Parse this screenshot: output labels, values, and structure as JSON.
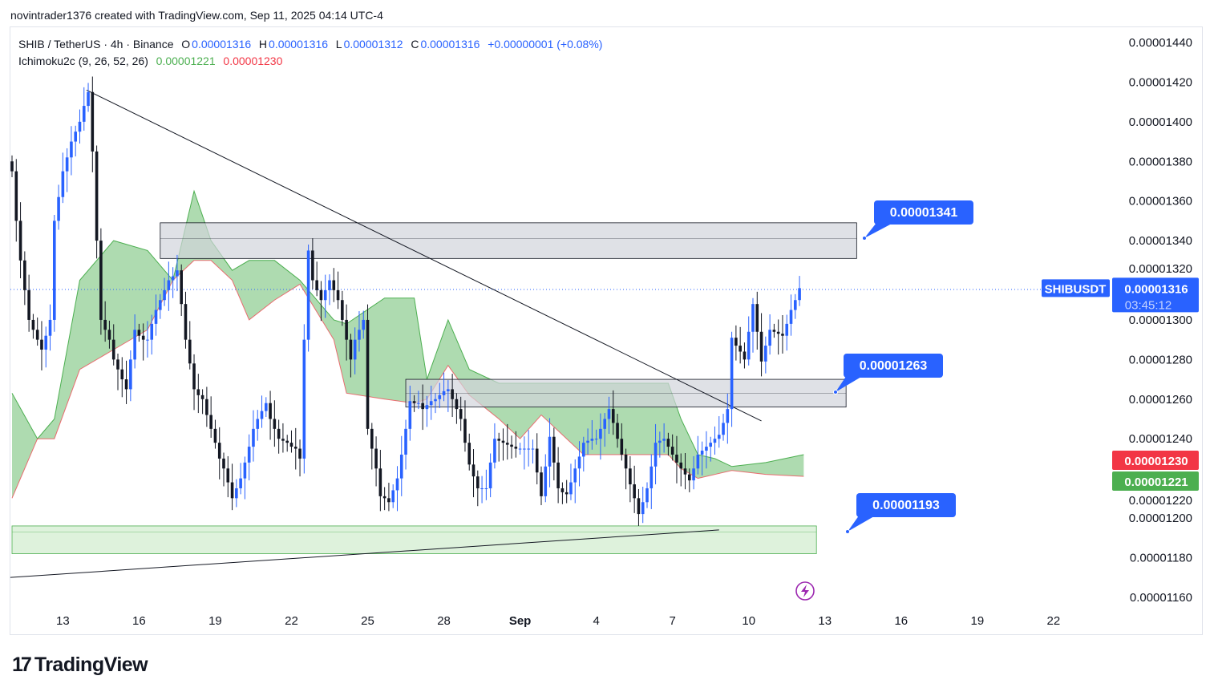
{
  "credit": "novintrader1376 created with TradingView.com, Sep 11, 2025 04:14 UTC-4",
  "legend": {
    "symbol": "SHIB / TetherUS · 4h · Binance",
    "o_label": "O",
    "o": "0.00001316",
    "h_label": "H",
    "h": "0.00001316",
    "l_label": "L",
    "l": "0.00001312",
    "c_label": "C",
    "c": "0.00001316",
    "change": "+0.00000001 (+0.08%)",
    "indicator": "Ichimoku2c (9, 26, 52, 26)",
    "ind_val1": "0.00001221",
    "ind_val2": "0.00001230"
  },
  "price_tag": {
    "symbol": "SHIBUSDT",
    "price": "0.00001316",
    "countdown": "03:45:12"
  },
  "ind_tags": {
    "red": "0.00001230",
    "green": "0.00001221"
  },
  "callouts": [
    "0.00001341",
    "0.00001263",
    "0.00001193"
  ],
  "logo": "TradingView",
  "colors": {
    "up": "#2962ff",
    "down": "#131722",
    "cloud": "#4caf50",
    "red": "#f23645",
    "tag": "#2962ff",
    "purple": "#9c27b0"
  },
  "chart_data": {
    "type": "candlestick",
    "title": "SHIB / TetherUS · 4h · Binance",
    "price_unit": "1e-8 USDT",
    "ylim": [
      1160,
      1440
    ],
    "y_ticks": [
      "0.00001440",
      "0.00001420",
      "0.00001400",
      "0.00001380",
      "0.00001360",
      "0.00001340",
      "0.00001320",
      "0.00001300",
      "0.00001280",
      "0.00001260",
      "0.00001240",
      "0.00001220",
      "0.00001200",
      "0.00001180",
      "0.00001160"
    ],
    "y_tick_values": [
      1440,
      1420,
      1400,
      1380,
      1360,
      1340,
      1320,
      1300,
      1280,
      1260,
      1240,
      1220,
      1200,
      1180,
      1160
    ],
    "x_ticks": [
      "13",
      "16",
      "19",
      "22",
      "25",
      "28",
      "Sep",
      "4",
      "7",
      "10",
      "13",
      "16",
      "19",
      "22"
    ],
    "x_tick_index": [
      12,
      30,
      48,
      66,
      84,
      102,
      120,
      138,
      156,
      174,
      192,
      210,
      228,
      246
    ],
    "closes": [
      1375,
      1350,
      1330,
      1315,
      1300,
      1295,
      1290,
      1285,
      1292,
      1300,
      1350,
      1362,
      1375,
      1382,
      1390,
      1395,
      1400,
      1408,
      1415,
      1385,
      1340,
      1300,
      1295,
      1290,
      1280,
      1275,
      1270,
      1265,
      1280,
      1295,
      1292,
      1290,
      1290,
      1298,
      1305,
      1310,
      1315,
      1320,
      1322,
      1325,
      1308,
      1290,
      1278,
      1265,
      1262,
      1260,
      1252,
      1245,
      1238,
      1230,
      1225,
      1218,
      1210,
      1215,
      1220,
      1228,
      1236,
      1245,
      1250,
      1254,
      1258,
      1250,
      1245,
      1240,
      1239,
      1238,
      1236,
      1235,
      1230,
      1290,
      1335,
      1320,
      1315,
      1310,
      1315,
      1320,
      1315,
      1310,
      1300,
      1290,
      1280,
      1290,
      1295,
      1300,
      1245,
      1235,
      1225,
      1211,
      1210,
      1208,
      1214,
      1220,
      1232,
      1245,
      1259,
      1258,
      1258,
      1255,
      1257,
      1259,
      1260,
      1262,
      1264,
      1265,
      1260,
      1255,
      1250,
      1238,
      1227,
      1221,
      1215,
      1215,
      1215,
      1228,
      1240,
      1239,
      1238,
      1237,
      1236,
      1235,
      1235,
      1235,
      1235,
      1235,
      1223,
      1211,
      1226,
      1241,
      1228,
      1215,
      1213,
      1212,
      1218,
      1225,
      1231,
      1238,
      1239,
      1240,
      1240,
      1245,
      1250,
      1255,
      1248,
      1240,
      1232,
      1225,
      1217,
      1210,
      1202,
      1208,
      1215,
      1226,
      1238,
      1239,
      1240,
      1236,
      1232,
      1228,
      1225,
      1222,
      1219,
      1225,
      1232,
      1234,
      1236,
      1238,
      1240,
      1242,
      1248,
      1255,
      1291,
      1287,
      1284,
      1280,
      1294,
      1308,
      1294,
      1279,
      1287,
      1295,
      1294,
      1293,
      1292,
      1298,
      1305,
      1310,
      1316
    ],
    "cloud": [
      [
        0,
        1263,
        1210
      ],
      [
        6,
        1240,
        1240
      ],
      [
        10,
        1250,
        1240
      ],
      [
        16,
        1320,
        1275
      ],
      [
        24,
        1340,
        1285
      ],
      [
        32,
        1335,
        1295
      ],
      [
        38,
        1320,
        1320
      ],
      [
        43,
        1365,
        1330
      ],
      [
        47,
        1340,
        1330
      ],
      [
        52,
        1325,
        1320
      ],
      [
        56,
        1330,
        1300
      ],
      [
        62,
        1330,
        1310
      ],
      [
        68,
        1320,
        1318
      ],
      [
        76,
        1300,
        1290
      ],
      [
        79,
        1298,
        1263
      ],
      [
        88,
        1311,
        1260
      ],
      [
        95,
        1311,
        1258
      ],
      [
        98,
        1270,
        1260
      ],
      [
        103,
        1300,
        1277
      ],
      [
        108,
        1275,
        1262
      ],
      [
        115,
        1268,
        1250
      ],
      [
        120,
        1268,
        1240
      ],
      [
        125,
        1268,
        1252
      ],
      [
        135,
        1268,
        1232
      ],
      [
        145,
        1268,
        1232
      ],
      [
        155,
        1268,
        1232
      ],
      [
        158,
        1250,
        1225
      ],
      [
        162,
        1232,
        1220
      ],
      [
        166,
        1230,
        1222
      ],
      [
        170,
        1226,
        1224
      ],
      [
        178,
        1228,
        1222
      ],
      [
        187,
        1232,
        1221
      ]
    ],
    "zones": [
      {
        "label": "0.00001341",
        "from": 35,
        "to": 199.5,
        "top": 1349,
        "bottom": 1331,
        "mid": 1341,
        "fill": "#d1d4dc"
      },
      {
        "label": "0.00001263",
        "from": 93,
        "to": 197,
        "top": 1270,
        "bottom": 1256,
        "mid": 1263,
        "fill": "#d1d4dc"
      },
      {
        "label": "0.00001193",
        "from": 0,
        "to": 190,
        "top": 1196,
        "bottom": 1182,
        "mid": 1193,
        "fill": "#d8f0d6"
      }
    ],
    "trendlines": [
      {
        "from": [
          17.6,
          1416
        ],
        "to": [
          177,
          1249
        ]
      },
      {
        "from": [
          -0.4,
          1170
        ],
        "to": [
          167,
          1194
        ]
      }
    ],
    "last_price": 1316
  }
}
